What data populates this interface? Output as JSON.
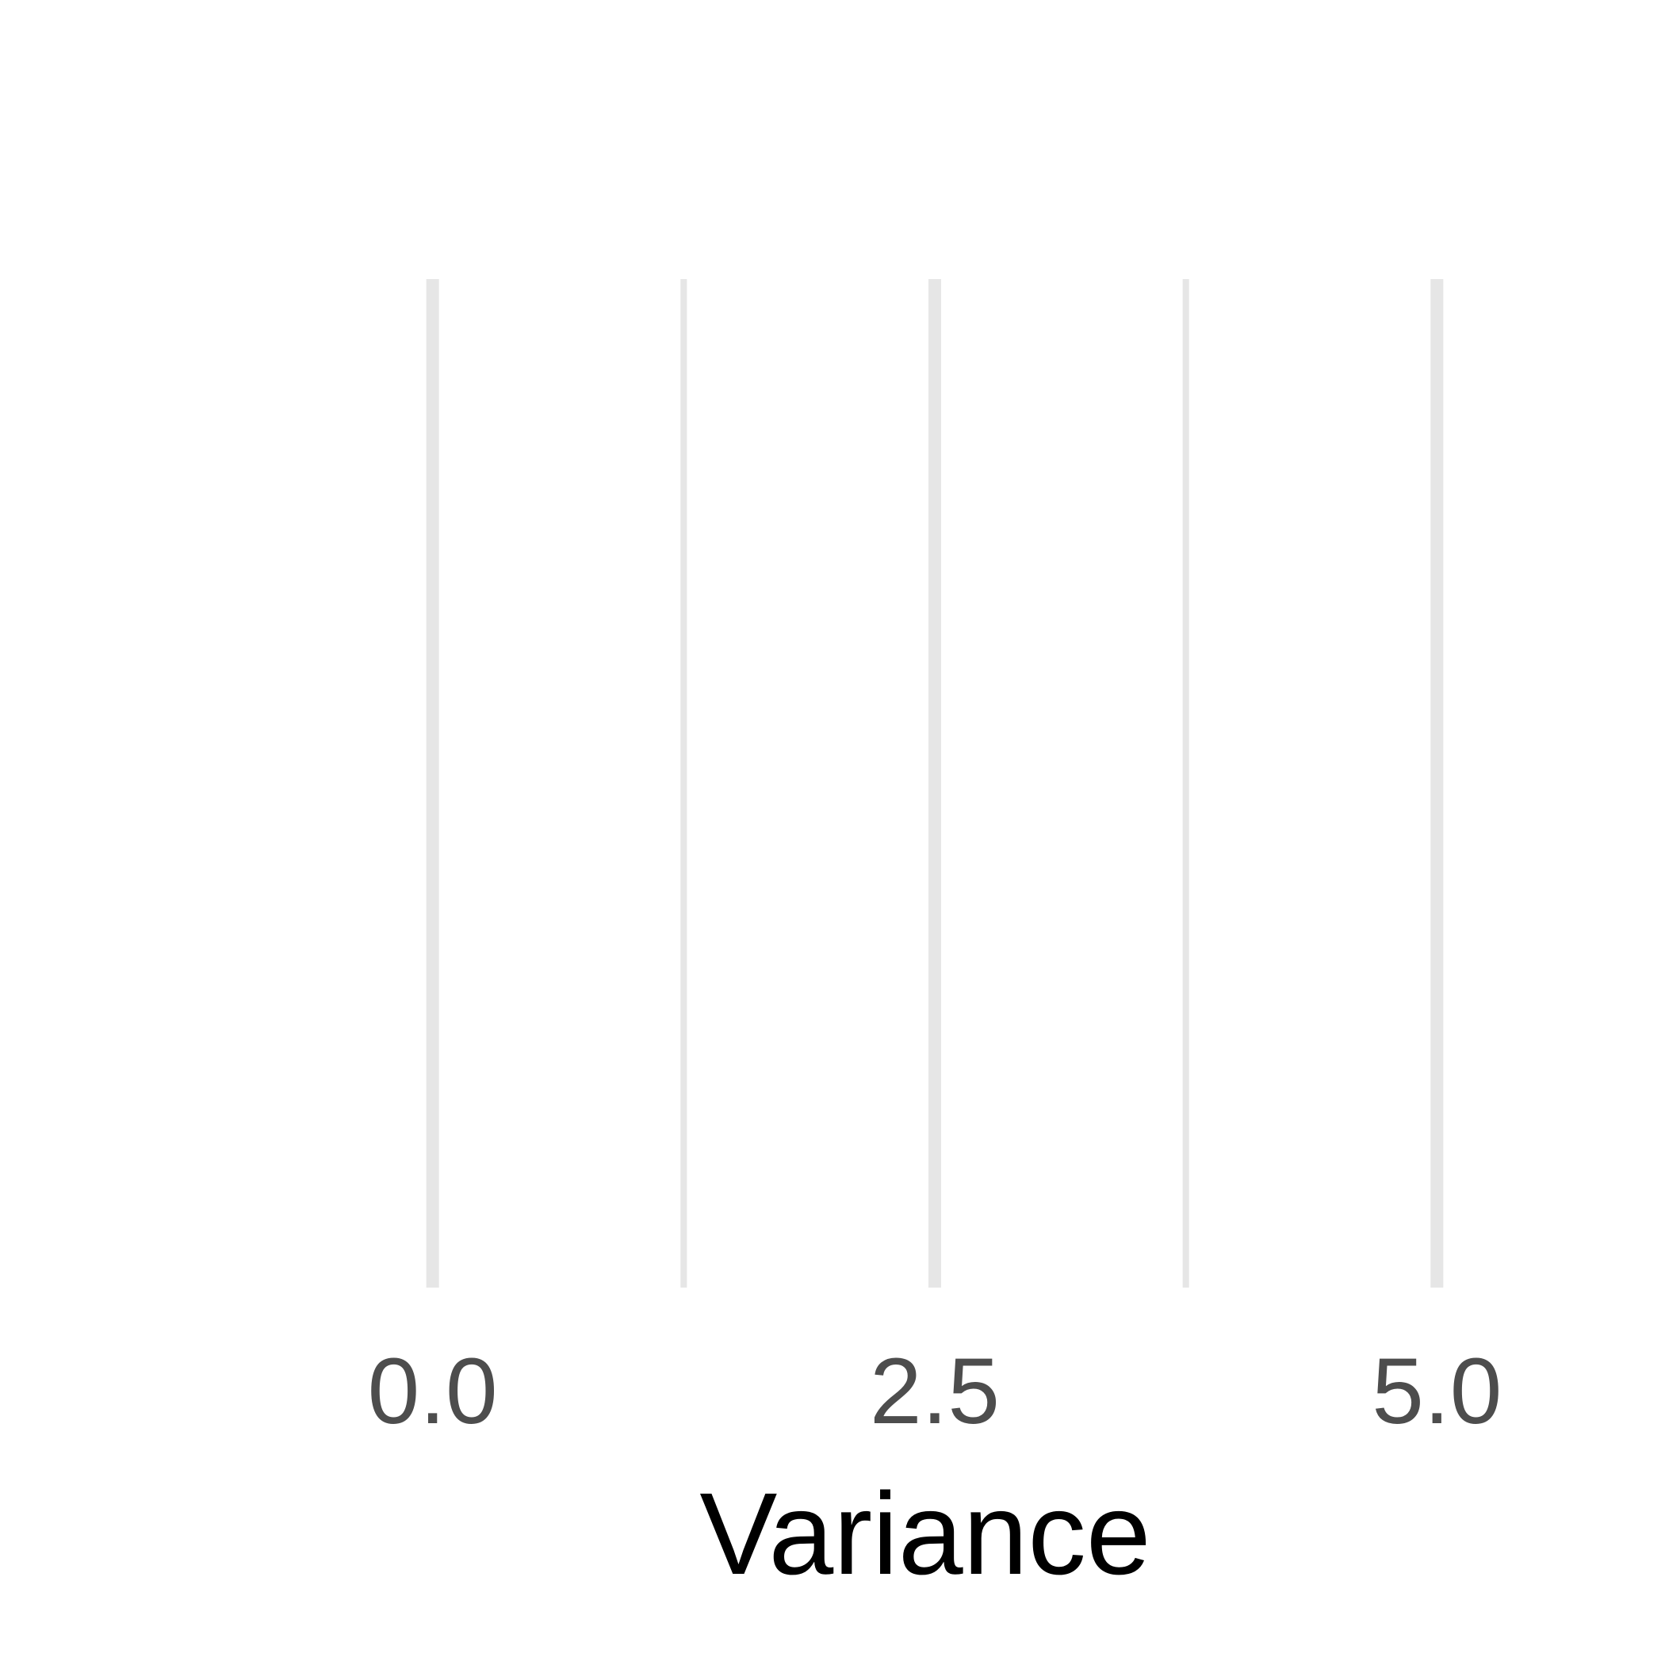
{
  "chart_data": {
    "type": "bar",
    "title": "",
    "xlabel": "Variance",
    "ylabel": "",
    "xlim": [
      -0.5,
      5.5
    ],
    "x_ticks": [
      {
        "value": 0.0,
        "label": "0.0"
      },
      {
        "value": 2.5,
        "label": "2.5"
      },
      {
        "value": 5.0,
        "label": "5.0"
      }
    ],
    "minor_gridlines": [
      1.25,
      3.75
    ],
    "grid": true,
    "series": [],
    "colors": {
      "background": "#ffffff",
      "gridline": "#e6e6e6",
      "tick_label": "#4d4d4d",
      "axis_title": "#000000"
    }
  }
}
